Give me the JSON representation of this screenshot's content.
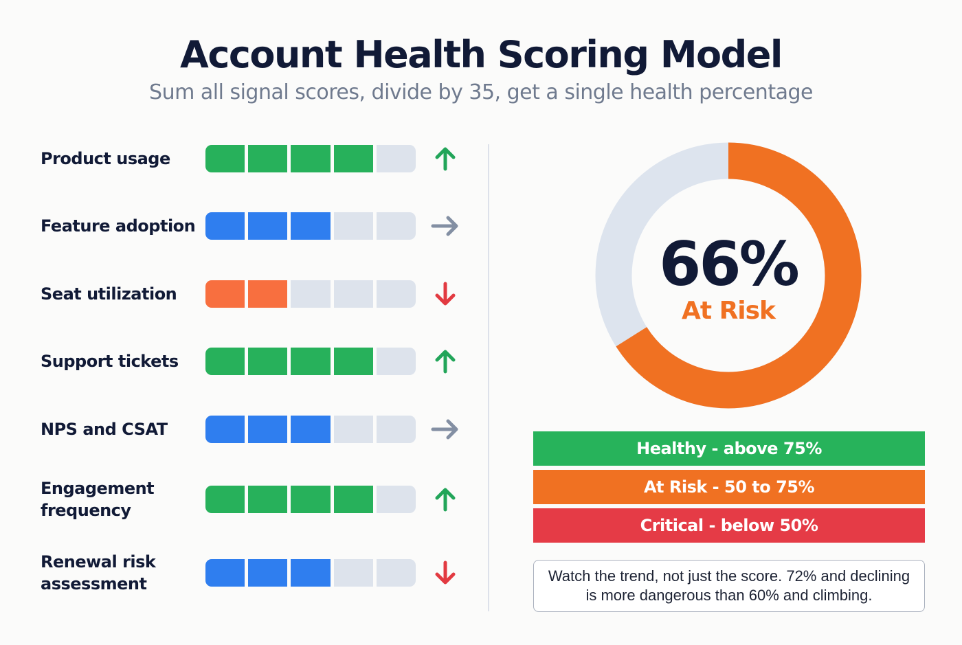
{
  "header": {
    "title": "Account Health Scoring Model",
    "subtitle": "Sum all signal scores, divide by 35, get a single health percentage"
  },
  "colors": {
    "green": "#27b15b",
    "blue": "#2f7eef",
    "orange_bar": "#f86f3f",
    "empty": "#dde3ec",
    "trend_up": "#22a559",
    "trend_flat": "#838fa3",
    "trend_down": "#e23a41",
    "donut_fill": "#f07122",
    "donut_track": "#dde4ee",
    "healthy": "#27b35b",
    "at_risk": "#f07122",
    "critical": "#e53b46"
  },
  "signals": [
    {
      "label": "Product usage",
      "score": 4,
      "max": 5,
      "color": "green",
      "trend": "up",
      "trend_icon": "arrow-up-icon"
    },
    {
      "label": "Feature adoption",
      "score": 3,
      "max": 5,
      "color": "blue",
      "trend": "flat",
      "trend_icon": "arrow-right-icon"
    },
    {
      "label": "Seat utilization",
      "score": 2,
      "max": 5,
      "color": "orange_bar",
      "trend": "down",
      "trend_icon": "arrow-down-icon"
    },
    {
      "label": "Support tickets",
      "score": 4,
      "max": 5,
      "color": "green",
      "trend": "up",
      "trend_icon": "arrow-up-icon"
    },
    {
      "label": "NPS and CSAT",
      "score": 3,
      "max": 5,
      "color": "blue",
      "trend": "flat",
      "trend_icon": "arrow-right-icon"
    },
    {
      "label": "Engagement frequency",
      "score": 4,
      "max": 5,
      "color": "green",
      "trend": "up",
      "trend_icon": "arrow-up-icon"
    },
    {
      "label": "Renewal risk assessment",
      "score": 3,
      "max": 5,
      "color": "blue",
      "trend": "down",
      "trend_icon": "arrow-down-icon"
    }
  ],
  "gauge": {
    "value_text": "66%",
    "value": 66,
    "status": "At Risk"
  },
  "thresholds": [
    {
      "label": "Healthy - above 75%",
      "color": "healthy"
    },
    {
      "label": "At Risk - 50 to 75%",
      "color": "at_risk"
    },
    {
      "label": "Critical - below 50%",
      "color": "critical"
    }
  ],
  "note": "Watch the trend, not just the score. 72% and declining is more dangerous than 60% and climbing.",
  "chart_data": {
    "type": "bar",
    "title": "Account Health Scoring Model",
    "categories": [
      "Product usage",
      "Feature adoption",
      "Seat utilization",
      "Support tickets",
      "NPS and CSAT",
      "Engagement frequency",
      "Renewal risk assessment"
    ],
    "values": [
      4,
      3,
      2,
      4,
      3,
      4,
      3
    ],
    "max_per_signal": 5,
    "trends": [
      "up",
      "flat",
      "down",
      "up",
      "flat",
      "up",
      "down"
    ],
    "total_max": 35,
    "summary": {
      "type": "pie",
      "value": 66,
      "label": "At Risk"
    }
  }
}
